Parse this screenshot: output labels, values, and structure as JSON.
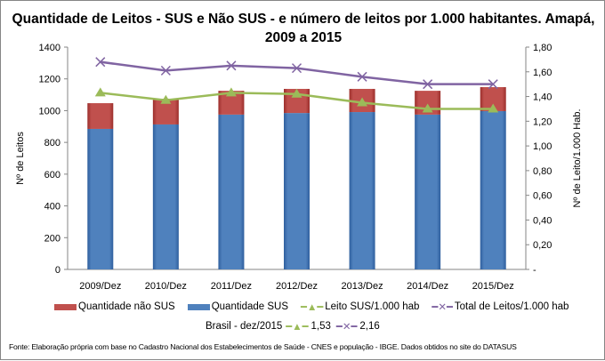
{
  "chart_data": {
    "type": "bar",
    "title": "Quantidade de Leitos - SUS e Não SUS - e número de leitos por 1.000 habitantes. Amapá, 2009 a 2015",
    "ylabel": "Nº de Leitos",
    "y2label": "Nº de Leito/1.000 Hab.",
    "ylim": [
      0,
      1400
    ],
    "y2lim": [
      0,
      1.8
    ],
    "yticks": [
      "0",
      "200",
      "400",
      "600",
      "800",
      "1000",
      "1200",
      "1400"
    ],
    "y2ticks": [
      "-",
      "0,20",
      "0,40",
      "0,60",
      "0,80",
      "1,00",
      "1,20",
      "1,40",
      "1,60",
      "1,80"
    ],
    "categories": [
      "2009/Dez",
      "2010/Dez",
      "2011/Dez",
      "2012/Dez",
      "2013/Dez",
      "2014/Dez",
      "2015/Dez"
    ],
    "series": [
      {
        "name": "Quantidade não SUS",
        "kind": "stacked-bar",
        "color": "#C0504D",
        "values": [
          162,
          162,
          150,
          152,
          146,
          150,
          151
        ]
      },
      {
        "name": "Quantidade SUS",
        "kind": "stacked-bar",
        "color": "#4F81BD",
        "values": [
          885,
          913,
          975,
          985,
          991,
          975,
          997
        ]
      },
      {
        "name": "Leito SUS/1.000 hab",
        "kind": "line",
        "axis": "right",
        "marker": "triangle",
        "color": "#9BBB59",
        "values": [
          1.43,
          1.37,
          1.43,
          1.42,
          1.35,
          1.3,
          1.3
        ]
      },
      {
        "name": "Total de Leitos/1.000 hab",
        "kind": "line",
        "axis": "right",
        "marker": "x",
        "color": "#8064A2",
        "values": [
          1.68,
          1.61,
          1.65,
          1.63,
          1.56,
          1.5,
          1.5
        ]
      }
    ],
    "legend_position": "bottom",
    "grid": false
  },
  "brasil": {
    "label": "Brasil -  dez/2015",
    "sus_value": "1,53",
    "total_value": "2,16"
  },
  "source": "Fonte: Elaboração própria com base no  Cadastro Nacional dos Estabelecimentos de Saúde - CNES e população - IBGE. Dados obtidos no site do DATASUS"
}
